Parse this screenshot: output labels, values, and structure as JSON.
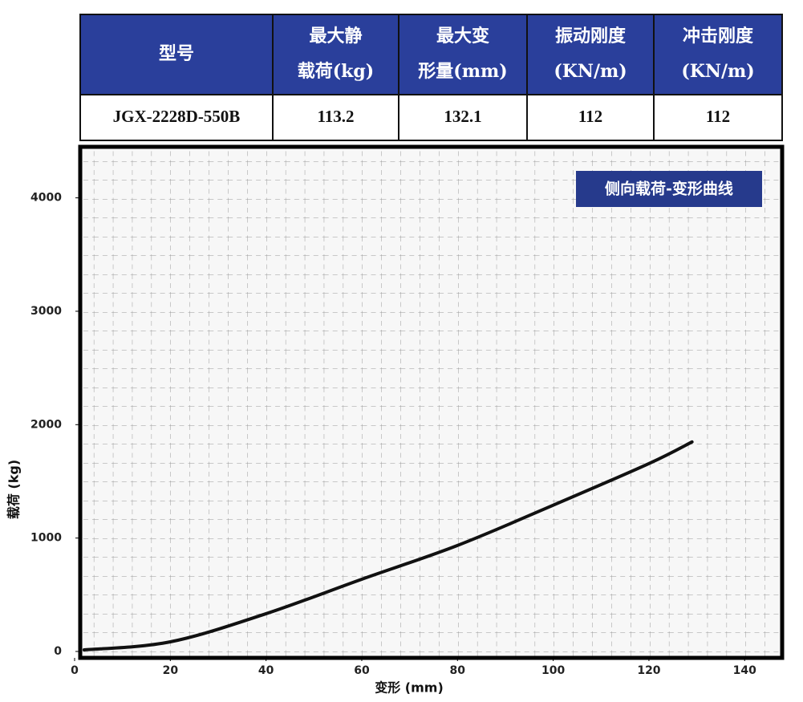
{
  "table": {
    "header": [
      [
        "型号"
      ],
      [
        "最大静",
        "载荷(kg)"
      ],
      [
        "最大变",
        "形量(mm)"
      ],
      [
        "振动刚度",
        "(KN/m)"
      ],
      [
        "冲击刚度",
        "(KN/m)"
      ]
    ],
    "rows": [
      [
        "JGX-2228D-550B",
        "113.2",
        "132.1",
        "112",
        "112"
      ]
    ]
  },
  "chart_data": {
    "type": "line",
    "title": "侧向载荷-变形曲线",
    "x_label": "变形 (mm)",
    "y_label": "载荷 (kg)",
    "series": [
      {
        "name": "侧向载荷",
        "color": "#111111",
        "x": [
          2,
          20,
          40,
          60,
          80,
          100,
          120,
          129
        ],
        "values": [
          14,
          85,
          333,
          637,
          935,
          1290,
          1657,
          1848
        ]
      }
    ],
    "xlim": [
      0,
      148
    ],
    "ylim": [
      0,
      4450
    ],
    "xticks": [
      0,
      20,
      40,
      60,
      80,
      100,
      120,
      140
    ],
    "yticks": [
      0,
      1000,
      2000,
      3000,
      4000
    ]
  }
}
